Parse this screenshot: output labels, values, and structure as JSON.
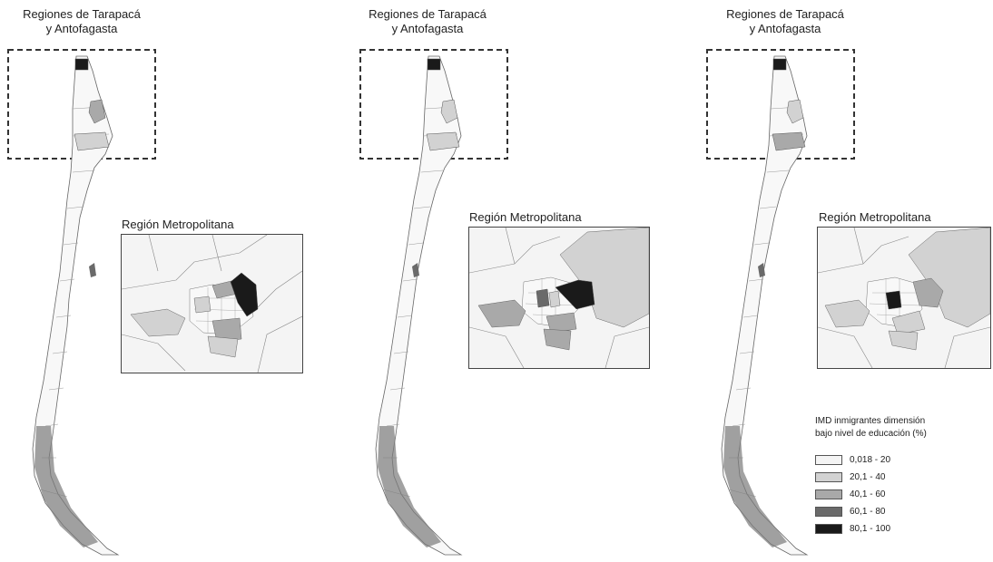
{
  "maps": [
    {
      "id": "map-1",
      "north_inset_title_line1": "Regiones de Tarapacá",
      "north_inset_title_line2": "y Antofagasta",
      "metro_inset_title": "Región Metropolitana"
    },
    {
      "id": "map-2",
      "north_inset_title_line1": "Regiones de Tarapacá",
      "north_inset_title_line2": "y Antofagasta",
      "metro_inset_title": "Región Metropolitana"
    },
    {
      "id": "map-3",
      "north_inset_title_line1": "Regiones de Tarapacá",
      "north_inset_title_line2": "y Antofagasta",
      "metro_inset_title": "Región Metropolitana"
    }
  ],
  "legend": {
    "title_line1": "IMD inmigrantes dimensión",
    "title_line2": "bajo nivel de educación (%)",
    "items": [
      {
        "label": "0,018 - 20",
        "color": "#f4f4f4"
      },
      {
        "label": "20,1 - 40",
        "color": "#d2d2d2"
      },
      {
        "label": "40,1 - 60",
        "color": "#a9a9a9"
      },
      {
        "label": "60,1 - 80",
        "color": "#6a6a6a"
      },
      {
        "label": "80,1 - 100",
        "color": "#1a1a1a"
      }
    ]
  }
}
